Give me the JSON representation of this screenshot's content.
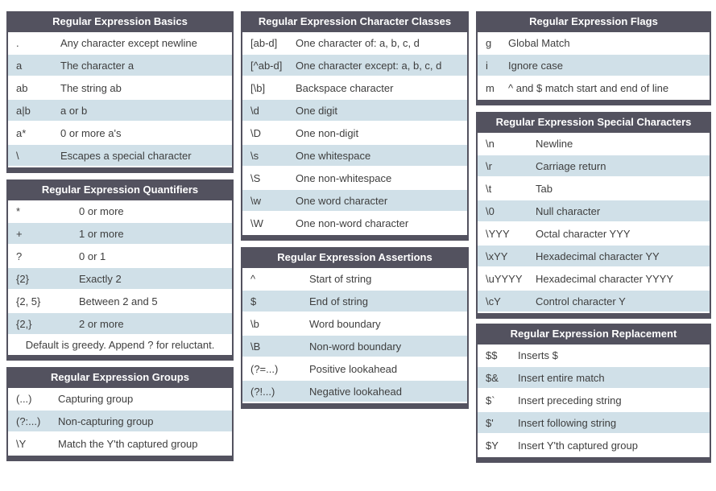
{
  "colors": {
    "header_bg": "#53525f",
    "row_alt_bg": "#d0e0e8",
    "row_bg": "#ffffff",
    "text": "#3e3e3e",
    "header_text": "#ffffff"
  },
  "tables": {
    "basics": {
      "title": "Regular Expression Basics",
      "rows": [
        {
          "code": ".",
          "desc": "Any character except newline"
        },
        {
          "code": "a",
          "desc": "The character a"
        },
        {
          "code": "ab",
          "desc": "The string ab"
        },
        {
          "code": "a|b",
          "desc": "a or b"
        },
        {
          "code": "a*",
          "desc": "0 or more a's"
        },
        {
          "code": "\\",
          "desc": "Escapes a special character"
        }
      ]
    },
    "quantifiers": {
      "title": "Regular Expression Quantifiers",
      "rows": [
        {
          "code": "*",
          "desc": "0 or more"
        },
        {
          "code": "+",
          "desc": "1 or more"
        },
        {
          "code": "?",
          "desc": "0 or 1"
        },
        {
          "code": "{2}",
          "desc": "Exactly 2"
        },
        {
          "code": "{2, 5}",
          "desc": "Between 2 and 5"
        },
        {
          "code": "{2,}",
          "desc": "2 or more"
        }
      ],
      "note": "Default is greedy. Append ? for reluctant."
    },
    "groups": {
      "title": "Regular Expression Groups",
      "rows": [
        {
          "code": "(...)",
          "desc": "Capturing group"
        },
        {
          "code": "(?:...)",
          "desc": "Non-capturing group"
        },
        {
          "code": "\\Y",
          "desc": "Match the Y'th captured group"
        }
      ]
    },
    "character_classes": {
      "title": "Regular Expression Character Classes",
      "rows": [
        {
          "code": "[ab-d]",
          "desc": "One character of: a, b, c, d"
        },
        {
          "code": "[^ab-d]",
          "desc": "One character except: a, b, c, d"
        },
        {
          "code": "[\\b]",
          "desc": "Backspace character"
        },
        {
          "code": "\\d",
          "desc": "One digit"
        },
        {
          "code": "\\D",
          "desc": "One non-digit"
        },
        {
          "code": "\\s",
          "desc": "One whitespace"
        },
        {
          "code": "\\S",
          "desc": "One non-whitespace"
        },
        {
          "code": "\\w",
          "desc": "One word character"
        },
        {
          "code": "\\W",
          "desc": "One non-word character"
        }
      ]
    },
    "assertions": {
      "title": "Regular Expression Assertions",
      "rows": [
        {
          "code": "^",
          "desc": "Start of string"
        },
        {
          "code": "$",
          "desc": "End of string"
        },
        {
          "code": "\\b",
          "desc": "Word boundary"
        },
        {
          "code": "\\B",
          "desc": "Non-word boundary"
        },
        {
          "code": "(?=...)",
          "desc": "Positive lookahead"
        },
        {
          "code": "(?!...)",
          "desc": "Negative lookahead"
        }
      ]
    },
    "flags": {
      "title": "Regular Expression Flags",
      "rows": [
        {
          "code": "g",
          "desc": "Global Match"
        },
        {
          "code": "i",
          "desc": "Ignore case"
        },
        {
          "code": "m",
          "desc": "^ and $ match start and end of line"
        }
      ]
    },
    "special_characters": {
      "title": "Regular Expression Special Characters",
      "rows": [
        {
          "code": "\\n",
          "desc": "Newline"
        },
        {
          "code": "\\r",
          "desc": "Carriage return"
        },
        {
          "code": "\\t",
          "desc": "Tab"
        },
        {
          "code": "\\0",
          "desc": "Null character"
        },
        {
          "code": "\\YYY",
          "desc": "Octal character YYY"
        },
        {
          "code": "\\xYY",
          "desc": "Hexadecimal character YY"
        },
        {
          "code": "\\uYYYY",
          "desc": "Hexadecimal character YYYY"
        },
        {
          "code": "\\cY",
          "desc": "Control character Y"
        }
      ]
    },
    "replacement": {
      "title": "Regular Expression Replacement",
      "rows": [
        {
          "code": "$$",
          "desc": "Inserts $"
        },
        {
          "code": "$&",
          "desc": "Insert entire match"
        },
        {
          "code": "$`",
          "desc": "Insert preceding string"
        },
        {
          "code": "$'",
          "desc": "Insert following string"
        },
        {
          "code": "$Y",
          "desc": "Insert Y'th captured group"
        }
      ]
    }
  }
}
